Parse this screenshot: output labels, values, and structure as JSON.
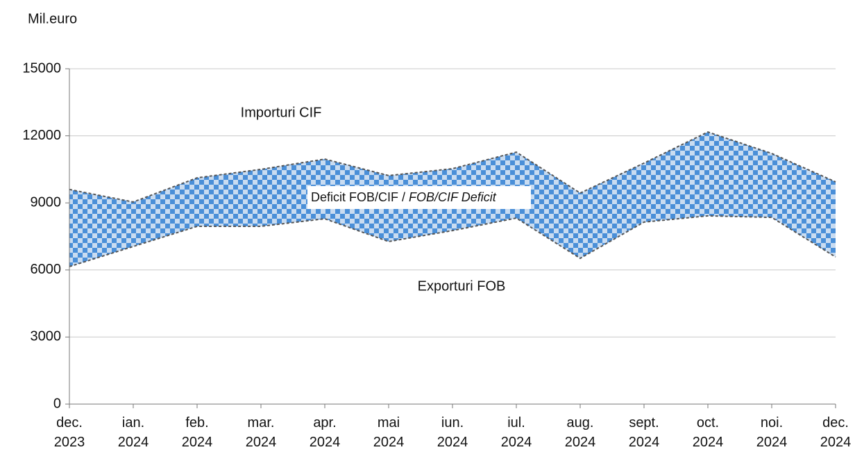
{
  "chart_data": {
    "type": "band",
    "y_label": "Mil.euro",
    "categories": [
      "dec. 2023",
      "ian. 2024",
      "feb. 2024",
      "mar. 2024",
      "apr. 2024",
      "mai 2024",
      "iun. 2024",
      "iul. 2024",
      "aug. 2024",
      "sept. 2024",
      "oct. 2024",
      "noi. 2024",
      "dec. 2024"
    ],
    "series": [
      {
        "name": "Importuri CIF",
        "color": "#555555",
        "values": [
          9600,
          9040,
          10120,
          10500,
          10960,
          10220,
          10530,
          11270,
          9440,
          10780,
          12170,
          11210,
          9940
        ]
      },
      {
        "name": "Exporturi FOB",
        "color": "#555555",
        "values": [
          6150,
          7050,
          7950,
          7950,
          8290,
          7270,
          7760,
          8320,
          6520,
          8140,
          8420,
          8350,
          6580
        ]
      }
    ],
    "band_label": {
      "text": "Deficit FOB/CIF /",
      "italic_text": "FOB/CIF Deficit"
    },
    "pattern_colors": [
      "#4a8fd8",
      "#c9dcf1"
    ],
    "ylim": [
      0,
      15000
    ],
    "yticks": [
      0,
      3000,
      6000,
      9000,
      12000,
      15000
    ],
    "grid": true
  }
}
